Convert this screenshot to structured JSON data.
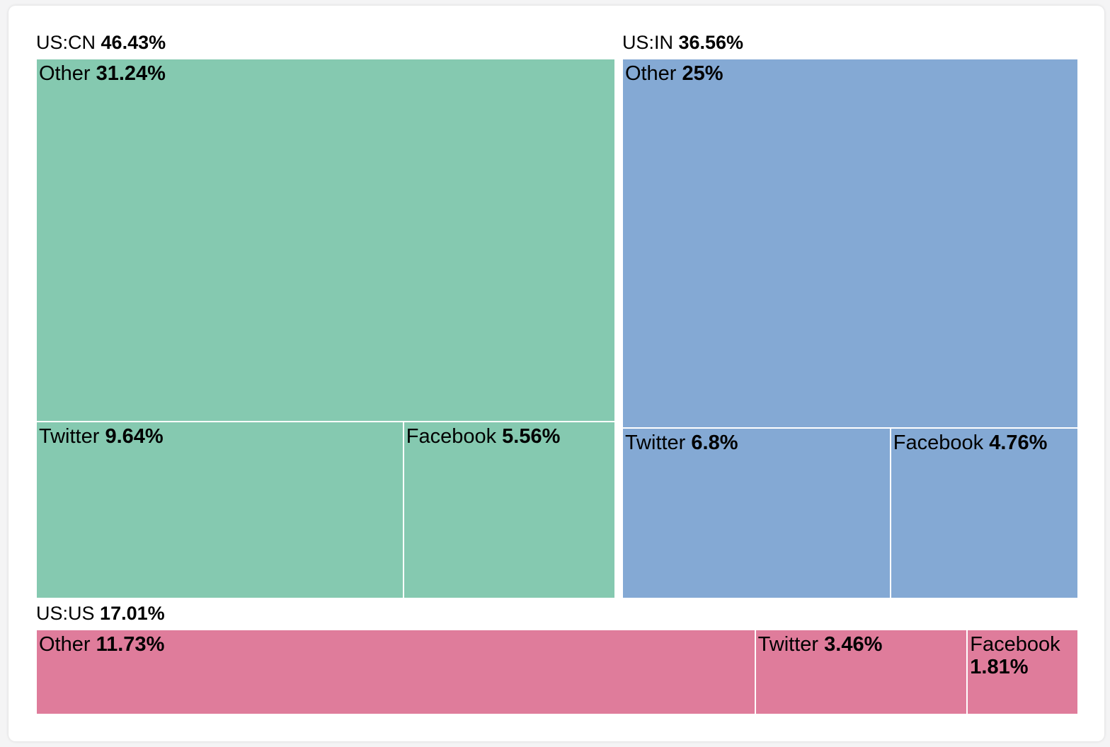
{
  "chart_data": {
    "type": "treemap",
    "series": [
      {
        "name": "US:CN",
        "value": 46.43,
        "value_label": "46.43%",
        "color": "#85c9b0",
        "categories": [
          "Other",
          "Twitter",
          "Facebook"
        ],
        "values": [
          31.24,
          9.64,
          5.56
        ],
        "value_labels": [
          "31.24%",
          "9.64%",
          "5.56%"
        ]
      },
      {
        "name": "US:IN",
        "value": 36.56,
        "value_label": "36.56%",
        "color": "#84a9d4",
        "categories": [
          "Other",
          "Twitter",
          "Facebook"
        ],
        "values": [
          25,
          6.8,
          4.76
        ],
        "value_labels": [
          "25%",
          "6.8%",
          "4.76%"
        ]
      },
      {
        "name": "US:US",
        "value": 17.01,
        "value_label": "17.01%",
        "color": "#df7c9b",
        "categories": [
          "Other",
          "Twitter",
          "Facebook"
        ],
        "values": [
          11.73,
          3.46,
          1.81
        ],
        "value_labels": [
          "11.73%",
          "3.46%",
          "1.81%"
        ]
      }
    ]
  }
}
